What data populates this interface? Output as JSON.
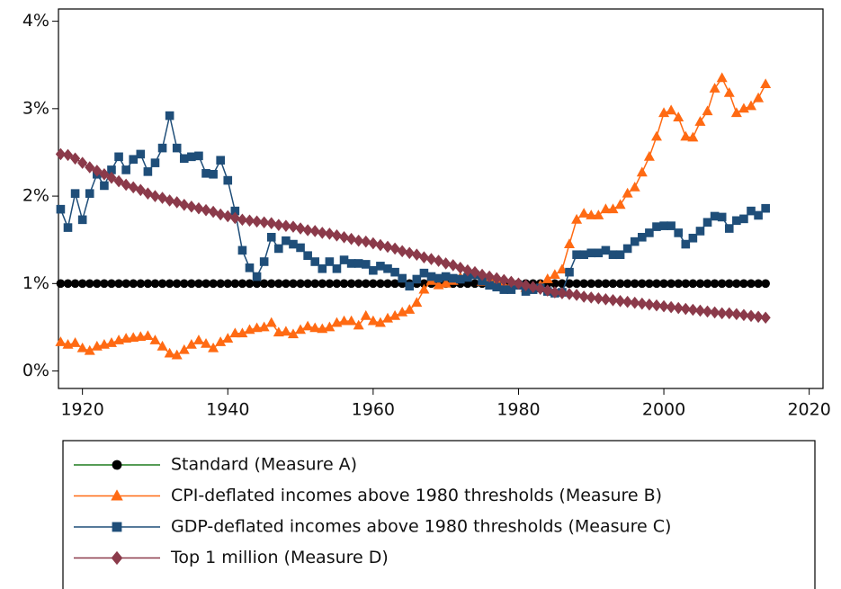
{
  "chart_data": {
    "type": "line",
    "x": [
      1917,
      1918,
      1919,
      1920,
      1921,
      1922,
      1923,
      1924,
      1925,
      1926,
      1927,
      1928,
      1929,
      1930,
      1931,
      1932,
      1933,
      1934,
      1935,
      1936,
      1937,
      1938,
      1939,
      1940,
      1941,
      1942,
      1943,
      1944,
      1945,
      1946,
      1947,
      1948,
      1949,
      1950,
      1951,
      1952,
      1953,
      1954,
      1955,
      1956,
      1957,
      1958,
      1959,
      1960,
      1961,
      1962,
      1963,
      1964,
      1965,
      1966,
      1967,
      1968,
      1969,
      1970,
      1971,
      1972,
      1973,
      1974,
      1975,
      1976,
      1977,
      1978,
      1979,
      1980,
      1981,
      1982,
      1983,
      1984,
      1985,
      1986,
      1987,
      1988,
      1989,
      1990,
      1991,
      1992,
      1993,
      1994,
      1995,
      1996,
      1997,
      1998,
      1999,
      2000,
      2001,
      2002,
      2003,
      2004,
      2005,
      2006,
      2007,
      2008,
      2009,
      2010,
      2011,
      2012,
      2013,
      2014
    ],
    "series": [
      {
        "name": "Standard (Measure A)",
        "color": "#000000",
        "line_color": "#1e7b1e",
        "marker": "circle",
        "values": [
          1,
          1,
          1,
          1,
          1,
          1,
          1,
          1,
          1,
          1,
          1,
          1,
          1,
          1,
          1,
          1,
          1,
          1,
          1,
          1,
          1,
          1,
          1,
          1,
          1,
          1,
          1,
          1,
          1,
          1,
          1,
          1,
          1,
          1,
          1,
          1,
          1,
          1,
          1,
          1,
          1,
          1,
          1,
          1,
          1,
          1,
          1,
          1,
          1,
          1,
          1,
          1,
          1,
          1,
          1,
          1,
          1,
          1,
          1,
          1,
          1,
          1,
          1,
          1,
          1,
          1,
          1,
          1,
          1,
          1,
          1,
          1,
          1,
          1,
          1,
          1,
          1,
          1,
          1,
          1,
          1,
          1,
          1,
          1,
          1,
          1,
          1,
          1,
          1,
          1,
          1,
          1,
          1,
          1,
          1,
          1,
          1,
          1
        ]
      },
      {
        "name": "CPI-deflated incomes above 1980 thresholds (Measure B)",
        "color": "#ff6a13",
        "line_color": "#ff6a13",
        "marker": "triangle",
        "values": [
          0.33,
          0.3,
          0.32,
          0.26,
          0.23,
          0.28,
          0.3,
          0.32,
          0.35,
          0.37,
          0.38,
          0.39,
          0.4,
          0.35,
          0.28,
          0.2,
          0.18,
          0.24,
          0.3,
          0.35,
          0.31,
          0.26,
          0.33,
          0.37,
          0.43,
          0.43,
          0.47,
          0.49,
          0.5,
          0.55,
          0.44,
          0.45,
          0.42,
          0.47,
          0.51,
          0.49,
          0.48,
          0.5,
          0.55,
          0.57,
          0.57,
          0.52,
          0.63,
          0.57,
          0.55,
          0.6,
          0.63,
          0.67,
          0.7,
          0.78,
          0.93,
          1.03,
          0.98,
          1.0,
          1.03,
          1.07,
          1.13,
          1.1,
          1.02,
          1.05,
          1.03,
          0.98,
          0.98,
          1.0,
          0.95,
          0.95,
          0.98,
          1.05,
          1.1,
          1.16,
          1.45,
          1.73,
          1.8,
          1.78,
          1.78,
          1.85,
          1.85,
          1.9,
          2.03,
          2.1,
          2.27,
          2.45,
          2.68,
          2.95,
          2.98,
          2.9,
          2.68,
          2.67,
          2.85,
          2.97,
          3.23,
          3.35,
          3.18,
          2.95,
          3.0,
          3.03,
          3.12,
          3.28
        ]
      },
      {
        "name": "GDP-deflated incomes above 1980 thresholds (Measure C)",
        "color": "#1f4e79",
        "line_color": "#1f4e79",
        "marker": "square",
        "values": [
          1.85,
          1.64,
          2.03,
          1.73,
          2.03,
          2.25,
          2.12,
          2.3,
          2.45,
          2.3,
          2.42,
          2.48,
          2.28,
          2.38,
          2.55,
          2.92,
          2.55,
          2.43,
          2.45,
          2.46,
          2.26,
          2.25,
          2.41,
          2.18,
          1.83,
          1.38,
          1.18,
          1.08,
          1.25,
          1.53,
          1.4,
          1.49,
          1.45,
          1.41,
          1.32,
          1.25,
          1.17,
          1.25,
          1.17,
          1.27,
          1.23,
          1.23,
          1.22,
          1.15,
          1.2,
          1.17,
          1.13,
          1.06,
          0.97,
          1.05,
          1.12,
          1.08,
          1.06,
          1.08,
          1.06,
          1.05,
          1.07,
          1.1,
          1.03,
          0.98,
          0.96,
          0.93,
          0.93,
          0.98,
          0.91,
          0.93,
          0.95,
          0.91,
          0.89,
          0.9,
          1.13,
          1.33,
          1.33,
          1.35,
          1.35,
          1.38,
          1.33,
          1.33,
          1.4,
          1.48,
          1.53,
          1.58,
          1.65,
          1.66,
          1.66,
          1.58,
          1.45,
          1.52,
          1.6,
          1.7,
          1.77,
          1.76,
          1.63,
          1.72,
          1.74,
          1.83,
          1.78,
          1.86
        ]
      },
      {
        "name": "Top 1 million (Measure D)",
        "color": "#8b3a4a",
        "line_color": "#8b3a4a",
        "marker": "diamond",
        "values": [
          2.48,
          2.47,
          2.43,
          2.38,
          2.33,
          2.29,
          2.25,
          2.21,
          2.17,
          2.13,
          2.1,
          2.07,
          2.03,
          2.0,
          1.98,
          1.95,
          1.93,
          1.9,
          1.88,
          1.86,
          1.84,
          1.82,
          1.79,
          1.77,
          1.75,
          1.73,
          1.72,
          1.71,
          1.7,
          1.69,
          1.67,
          1.66,
          1.65,
          1.63,
          1.61,
          1.6,
          1.58,
          1.57,
          1.55,
          1.53,
          1.51,
          1.49,
          1.48,
          1.46,
          1.44,
          1.42,
          1.4,
          1.37,
          1.35,
          1.33,
          1.3,
          1.28,
          1.26,
          1.23,
          1.21,
          1.18,
          1.15,
          1.13,
          1.1,
          1.08,
          1.06,
          1.04,
          1.02,
          1.0,
          0.98,
          0.96,
          0.94,
          0.92,
          0.9,
          0.89,
          0.88,
          0.87,
          0.85,
          0.84,
          0.83,
          0.82,
          0.81,
          0.8,
          0.79,
          0.78,
          0.77,
          0.76,
          0.75,
          0.74,
          0.73,
          0.72,
          0.71,
          0.7,
          0.69,
          0.68,
          0.67,
          0.66,
          0.66,
          0.65,
          0.64,
          0.63,
          0.62,
          0.61
        ]
      }
    ],
    "xlim": [
      1916.7,
      2021.9
    ],
    "xticks": [
      1920,
      1940,
      1960,
      1980,
      2000,
      2020
    ],
    "ylim": [
      -0.2,
      4.14
    ],
    "yticks": [
      {
        "value": 0,
        "label": "0%"
      },
      {
        "value": 1,
        "label": "1%"
      },
      {
        "value": 2,
        "label": "2%"
      },
      {
        "value": 3,
        "label": "3%"
      },
      {
        "value": 4,
        "label": "4%"
      }
    ]
  }
}
